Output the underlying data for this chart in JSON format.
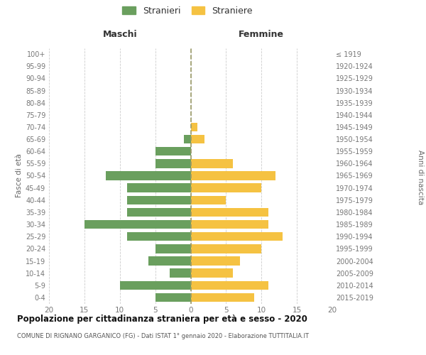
{
  "age_groups": [
    "100+",
    "95-99",
    "90-94",
    "85-89",
    "80-84",
    "75-79",
    "70-74",
    "65-69",
    "60-64",
    "55-59",
    "50-54",
    "45-49",
    "40-44",
    "35-39",
    "30-34",
    "25-29",
    "20-24",
    "15-19",
    "10-14",
    "5-9",
    "0-4"
  ],
  "birth_years": [
    "≤ 1919",
    "1920-1924",
    "1925-1929",
    "1930-1934",
    "1935-1939",
    "1940-1944",
    "1945-1949",
    "1950-1954",
    "1955-1959",
    "1960-1964",
    "1965-1969",
    "1970-1974",
    "1975-1979",
    "1980-1984",
    "1985-1989",
    "1990-1994",
    "1995-1999",
    "2000-2004",
    "2005-2009",
    "2010-2014",
    "2015-2019"
  ],
  "males": [
    0,
    0,
    0,
    0,
    0,
    0,
    0,
    1,
    5,
    5,
    12,
    9,
    9,
    9,
    15,
    9,
    5,
    6,
    3,
    10,
    5
  ],
  "females": [
    0,
    0,
    0,
    0,
    0,
    0,
    1,
    2,
    0,
    6,
    12,
    10,
    5,
    11,
    11,
    13,
    10,
    7,
    6,
    11,
    9
  ],
  "male_color": "#6a9f5e",
  "female_color": "#f5c242",
  "male_label": "Stranieri",
  "female_label": "Straniere",
  "title": "Popolazione per cittadinanza straniera per età e sesso - 2020",
  "subtitle": "COMUNE DI RIGNANO GARGANICO (FG) - Dati ISTAT 1° gennaio 2020 - Elaborazione TUTTITALIA.IT",
  "ylabel_left": "Fasce di età",
  "ylabel_right": "Anni di nascita",
  "xlabel_left": "Maschi",
  "xlabel_right": "Femmine",
  "xlim": 20,
  "background_color": "#ffffff",
  "grid_color": "#cccccc",
  "axis_label_color": "#666666",
  "tick_label_color": "#777777",
  "heading_color": "#333333",
  "title_color": "#111111",
  "subtitle_color": "#555555",
  "zeroline_color": "#999966"
}
